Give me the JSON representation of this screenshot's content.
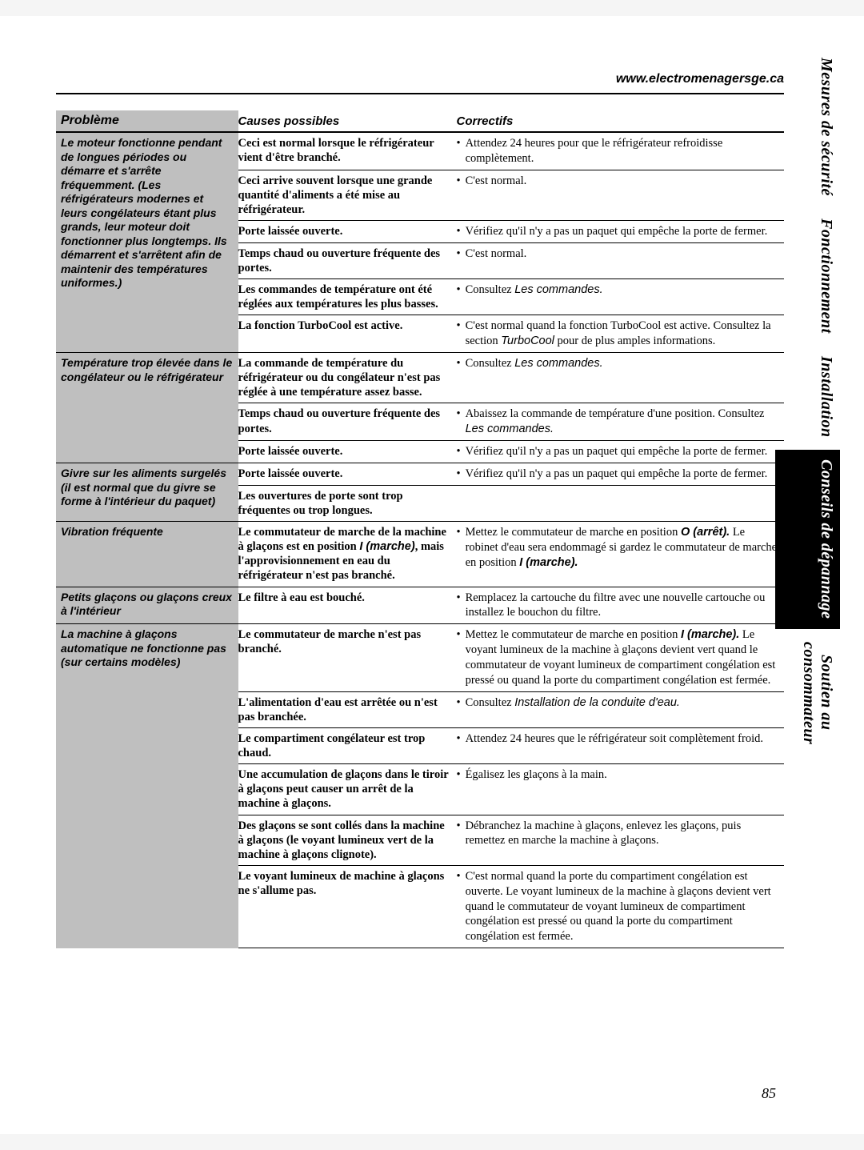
{
  "url": "www.electromenagersge.ca",
  "page_number": "85",
  "colors": {
    "header_bg": "#bfbfbf",
    "tab_dark_bg": "#000000",
    "tab_dark_fg": "#ffffff",
    "tab_light_bg": "#ffffff",
    "tab_light_fg": "#000000",
    "border": "#000000"
  },
  "fonts": {
    "heading_family": "Arial, Helvetica, sans-serif",
    "body_family": "Georgia, Times New Roman, serif",
    "header_size_pt": 12,
    "body_size_pt": 11
  },
  "tabs": [
    {
      "label": "Mesures de sécurité",
      "style": "light"
    },
    {
      "label": "Fonctionnement",
      "style": "light"
    },
    {
      "label": "Installation",
      "style": "light"
    },
    {
      "label": "Conseils de dépannage",
      "style": "dark"
    },
    {
      "label": "Soutien au\nconsommateur",
      "style": "light"
    }
  ],
  "headers": {
    "problem": "Problème",
    "cause": "Causes possibles",
    "fix": "Correctifs"
  },
  "rows": [
    {
      "problem": "Le moteur fonctionne pendant de longues périodes ou démarre et s'arrête fréquemment. (Les réfrigérateurs modernes et leurs congélateurs étant plus grands, leur moteur doit fonctionner plus longtemps. Ils démarrent et s'arrêtent afin de maintenir des températures uniformes.)",
      "problem_rowspan": 6,
      "cause": "Ceci est normal lorsque le réfrigérateur vient d'être branché.",
      "fix_html": "Attendez 24 heures pour que le réfrigérateur refroidisse complètement."
    },
    {
      "cause": "Ceci arrive souvent lorsque une grande quantité d'aliments a été mise au réfrigérateur.",
      "fix_html": "C'est normal."
    },
    {
      "cause": "Porte laissée ouverte.",
      "fix_html": "Vérifiez qu'il n'y a pas un paquet qui empêche la porte de fermer."
    },
    {
      "cause": "Temps chaud ou ouverture fréquente des portes.",
      "fix_html": "C'est normal."
    },
    {
      "cause": "Les commandes de température ont été réglées aux températures les plus basses.",
      "fix_html": "Consultez <span class=\"ital-ref\">Les commandes.</span>"
    },
    {
      "cause": "La fonction TurboCool est active.",
      "fix_html": "C'est normal quand la fonction TurboCool est active. Consultez la section <span class=\"ital-ref\">TurboCool</span> pour de plus amples informations."
    },
    {
      "problem": "Température trop élevée dans le congélateur ou le réfrigérateur",
      "problem_rowspan": 3,
      "cause": "La commande de température du réfrigérateur ou du congélateur n'est pas réglée à une température assez basse.",
      "fix_html": "Consultez <span class=\"ital-ref\">Les commandes.</span>"
    },
    {
      "cause": "Temps chaud ou ouverture fréquente des portes.",
      "fix_html": "Abaissez la commande de température d'une position. Consultez <span class=\"ital-ref\">Les commandes.</span>"
    },
    {
      "cause": "Porte laissée ouverte.",
      "fix_html": "Vérifiez qu'il n'y a pas un paquet qui empêche la porte de fermer."
    },
    {
      "problem": "Givre sur les aliments surgelés (il est normal que du givre se forme à l'intérieur du paquet)",
      "problem_rowspan": 2,
      "cause": "Porte laissée ouverte.",
      "fix_html": "Vérifiez qu'il n'y a pas un paquet qui empêche la porte de fermer."
    },
    {
      "cause": "Les ouvertures de porte sont trop fréquentes ou trop longues.",
      "fix_html": ""
    },
    {
      "problem": "Vibration fréquente",
      "problem_rowspan": 1,
      "cause": "Le commutateur de marche de la machine à glaçons est en position <span class=\"bold-ital\">I (marche)</span>, mais l'approvisionnement en eau du réfrigérateur n'est pas branché.",
      "fix_html": "Mettez le commutateur de marche en position <span class=\"bold-ital\">O (arrêt).</span> Le robinet d'eau sera endommagé si gardez le commutateur de marche en position <span class=\"bold-ital\">I (marche).</span>"
    },
    {
      "problem": "Petits glaçons ou glaçons creux à l'intérieur",
      "problem_rowspan": 1,
      "cause": "Le filtre à eau est bouché.",
      "fix_html": "Remplacez la cartouche du filtre avec une nouvelle cartouche ou installez le bouchon du filtre."
    },
    {
      "problem": "La machine à glaçons automatique ne fonctionne pas (sur certains modèles)",
      "problem_rowspan": 6,
      "cause": "Le commutateur de marche n'est pas branché.",
      "fix_html": "Mettez le commutateur de marche en position <span class=\"bold-ital\">I (marche).</span> Le voyant lumineux de la machine à glaçons devient vert quand le commutateur de voyant lumineux de compartiment congélation est pressé ou quand la porte du compartiment congélation est fermée."
    },
    {
      "cause": "L'alimentation d'eau est arrêtée ou n'est pas branchée.",
      "fix_html": "Consultez <span class=\"ital-ref\">Installation de la conduite d'eau.</span>"
    },
    {
      "cause": "Le compartiment congélateur est trop chaud.",
      "fix_html": "Attendez 24 heures que le réfrigérateur soit complètement froid."
    },
    {
      "cause": "Une accumulation de glaçons dans le tiroir à glaçons peut causer un arrêt de la machine à glaçons.",
      "fix_html": "Égalisez les glaçons à la main."
    },
    {
      "cause": "Des glaçons se sont collés dans la machine à glaçons (le voyant lumineux vert de la machine à glaçons clignote).",
      "fix_html": "Débranchez la machine à glaçons, enlevez les glaçons, puis remettez en marche la machine à glaçons."
    },
    {
      "cause": "Le voyant lumineux de machine à glaçons ne s'allume pas.",
      "fix_html": "C'est normal quand la porte du compartiment congélation est ouverte. Le voyant lumineux de la machine à glaçons devient vert quand le commutateur de voyant lumineux de compartiment congélation est pressé ou quand la porte du compartiment congélation est fermée."
    }
  ]
}
